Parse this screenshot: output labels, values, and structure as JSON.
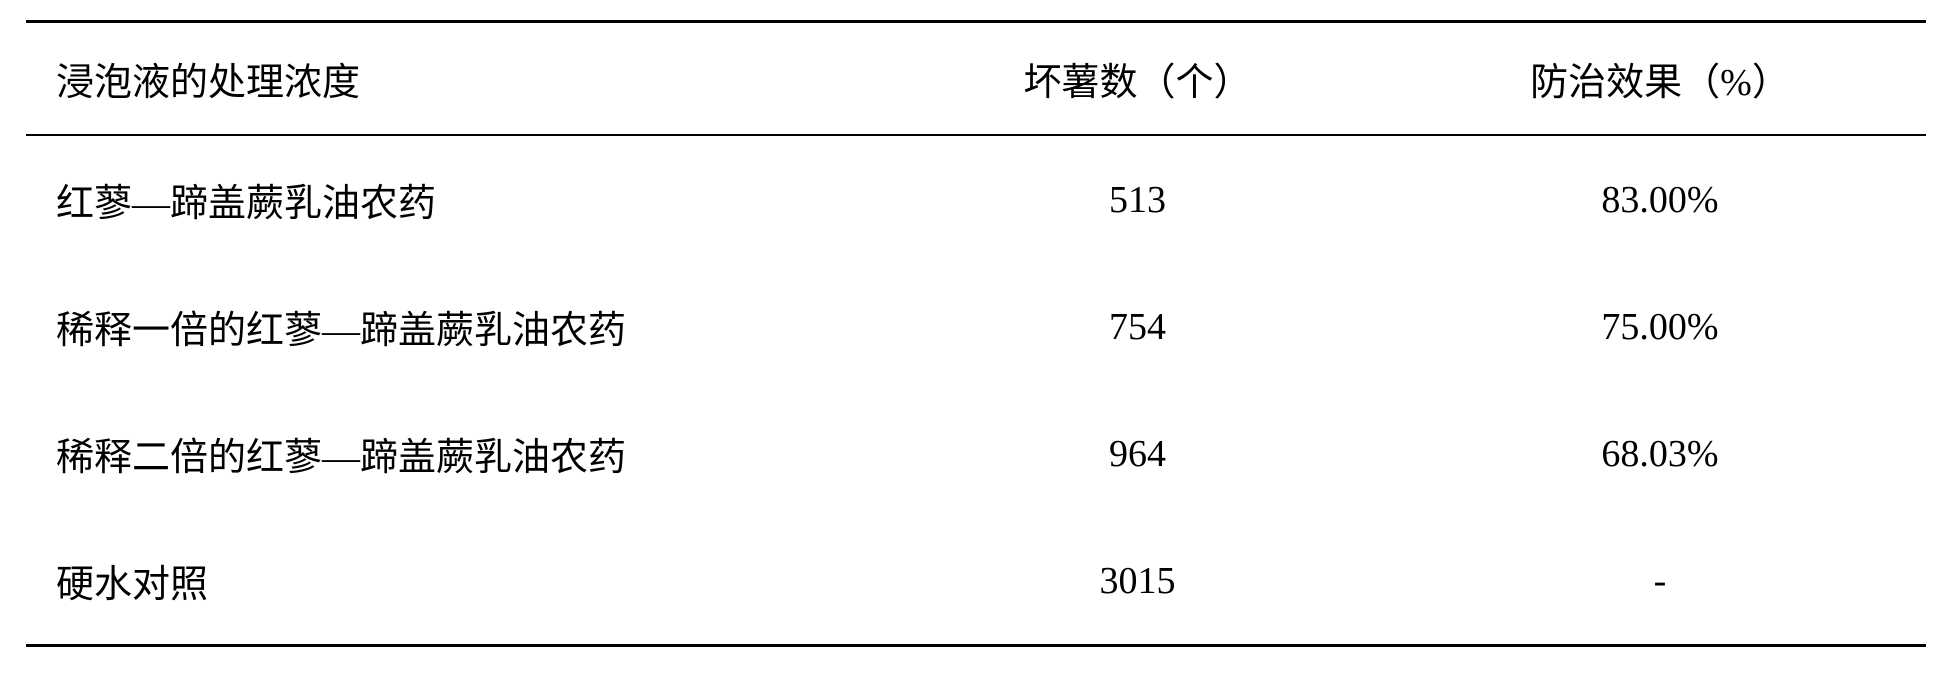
{
  "table": {
    "type": "table",
    "background_color": "#ffffff",
    "text_color": "#000000",
    "border_color": "#000000",
    "font_family": "SimSun",
    "font_size": 38,
    "top_border_width": 3,
    "header_bottom_border_width": 2,
    "bottom_border_width": 3,
    "columns": [
      {
        "header": "浸泡液的处理浓度",
        "align": "left",
        "width_pct": 45
      },
      {
        "header": "坏薯数（个）",
        "align": "center",
        "width_pct": 27
      },
      {
        "header": "防治效果（%）",
        "align": "center",
        "width_pct": 28
      }
    ],
    "rows": [
      {
        "treatment": "红蓼—蹄盖蕨乳油农药",
        "bad_count": "513",
        "effect": "83.00%"
      },
      {
        "treatment": "稀释一倍的红蓼—蹄盖蕨乳油农药",
        "bad_count": "754",
        "effect": "75.00%"
      },
      {
        "treatment": "稀释二倍的红蓼—蹄盖蕨乳油农药",
        "bad_count": "964",
        "effect": "68.03%"
      },
      {
        "treatment": "硬水对照",
        "bad_count": "3015",
        "effect": "-"
      }
    ]
  }
}
